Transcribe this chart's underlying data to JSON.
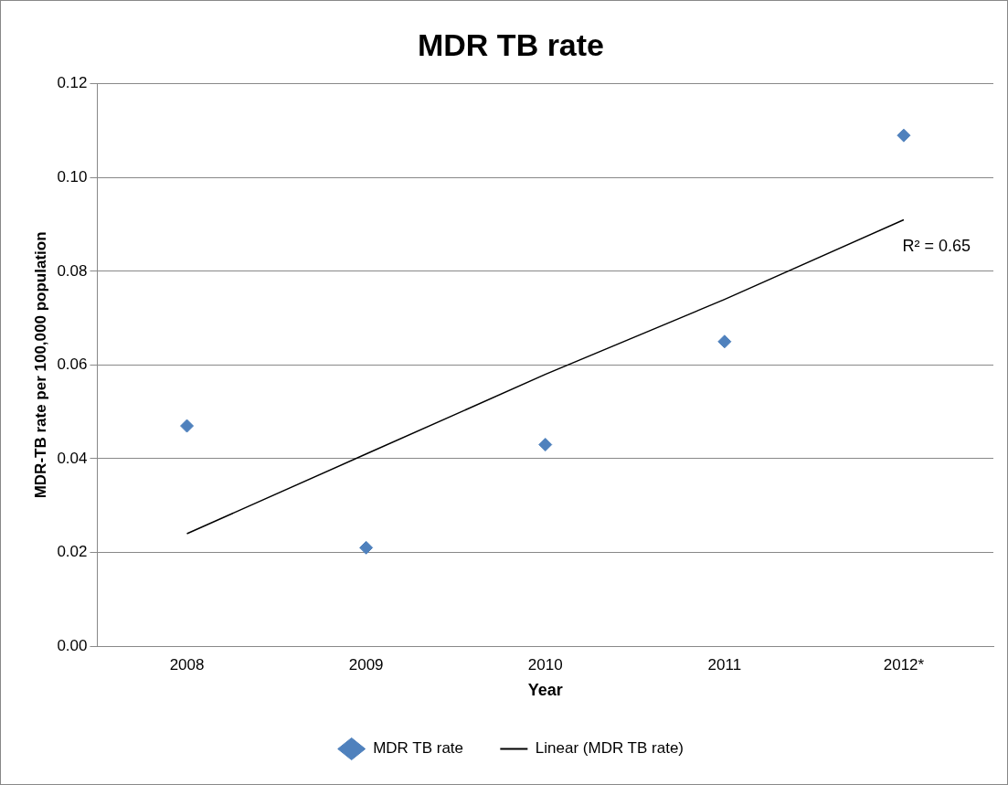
{
  "chart_data": {
    "type": "scatter",
    "title": "MDR TB rate",
    "xlabel": "Year",
    "ylabel": "MDR-TB rate per 100,000 population",
    "categories": [
      "2008",
      "2009",
      "2010",
      "2011",
      "2012*"
    ],
    "series": [
      {
        "name": "MDR TB rate",
        "color": "#4f81bd",
        "marker": "diamond",
        "values": [
          0.047,
          0.021,
          0.043,
          0.065,
          0.109
        ]
      },
      {
        "name": "Linear (MDR TB rate)",
        "type": "line",
        "color": "#000000",
        "marker": "none",
        "values": [
          0.024,
          0.041,
          0.058,
          0.074,
          0.091
        ]
      }
    ],
    "ylim": [
      0,
      0.12
    ],
    "yticks": [
      {
        "value": 0,
        "label": "0.00"
      },
      {
        "value": 0.02,
        "label": "0.02"
      },
      {
        "value": 0.04,
        "label": "0.04"
      },
      {
        "value": 0.06,
        "label": "0.06"
      },
      {
        "value": 0.08,
        "label": "0.08"
      },
      {
        "value": 0.1,
        "label": "0.10"
      },
      {
        "value": 0.12,
        "label": "0.12"
      }
    ],
    "annotations": [
      "R² = 0.65"
    ],
    "grid": "y",
    "legend": "bottom"
  }
}
